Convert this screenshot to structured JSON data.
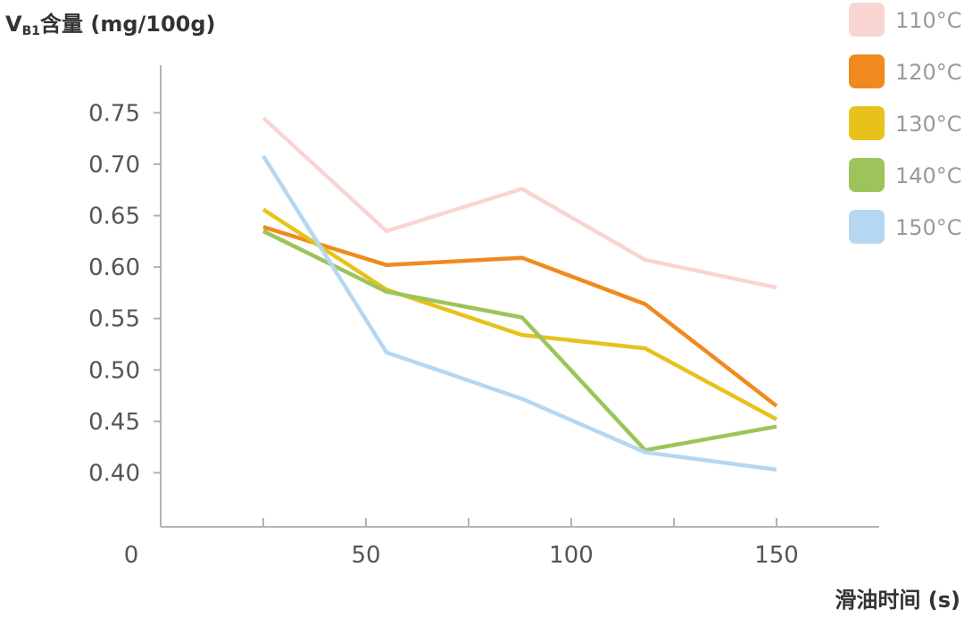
{
  "chart_data": {
    "type": "line",
    "title": "",
    "ylabel_main": "V",
    "ylabel_sub": "B1",
    "ylabel_rest": "含量 (mg/100g)",
    "xlabel": "滑油时间 (s)",
    "xlim": [
      0,
      175
    ],
    "ylim": [
      0.35,
      0.79
    ],
    "x_ticks": [
      0,
      50,
      100,
      150
    ],
    "x_tick_labels": [
      "0",
      "50",
      "100",
      "150"
    ],
    "x_minor_ticks": [
      25,
      75,
      125
    ],
    "y_ticks": [
      0.4,
      0.45,
      0.5,
      0.55,
      0.6,
      0.65,
      0.7,
      0.75
    ],
    "y_tick_labels": [
      "0.40",
      "0.45",
      "0.50",
      "0.55",
      "0.60",
      "0.65",
      "0.70",
      "0.75"
    ],
    "grid": false,
    "legend_position": "top-right",
    "x": [
      25,
      55,
      88,
      118,
      150
    ],
    "series": [
      {
        "name": "110°C",
        "color": "#f9d5d2",
        "values": [
          0.745,
          0.635,
          0.676,
          0.607,
          0.58
        ]
      },
      {
        "name": "120°C",
        "color": "#f08a1e",
        "values": [
          0.639,
          0.602,
          0.609,
          0.564,
          0.465
        ]
      },
      {
        "name": "130°C",
        "color": "#e8c21a",
        "values": [
          0.656,
          0.578,
          0.534,
          0.521,
          0.452
        ]
      },
      {
        "name": "140°C",
        "color": "#9cc45a",
        "values": [
          0.635,
          0.576,
          0.551,
          0.422,
          0.445
        ]
      },
      {
        "name": "150°C",
        "color": "#b6d7f2",
        "values": [
          0.708,
          0.517,
          0.472,
          0.42,
          0.403
        ]
      }
    ]
  }
}
